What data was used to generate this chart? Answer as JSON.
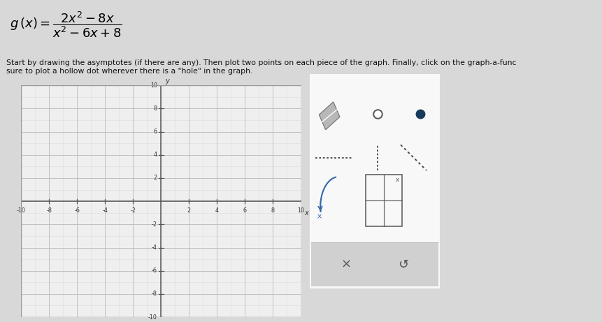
{
  "xmin": -10,
  "xmax": 10,
  "ymin": -10,
  "ymax": 10,
  "xticks": [
    -10,
    -8,
    -6,
    -4,
    -2,
    2,
    4,
    6,
    8,
    10
  ],
  "yticks": [
    -10,
    -8,
    -6,
    -4,
    -2,
    2,
    4,
    6,
    8,
    10
  ],
  "bg_color": "#d8d8d8",
  "plot_bg": "#efefef",
  "axis_color": "#555555",
  "grid_major_color": "#c0c0c0",
  "grid_minor_color": "#dcdcdc",
  "panel_bg": "#f8f8f8",
  "panel_border": "#bbbbbb",
  "panel_bottom_bg": "#d0d0d0",
  "icon_color": "#444455",
  "curve_color": "#3366aa"
}
